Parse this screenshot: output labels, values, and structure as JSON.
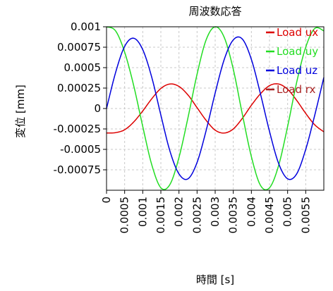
{
  "chart_data": {
    "type": "line",
    "title": "周波数応答",
    "xlabel": "時間 [s]",
    "ylabel": "変位 [mm]",
    "xlim": [
      0,
      0.006
    ],
    "ylim": [
      -0.001,
      0.001
    ],
    "x_ticks": [
      "0",
      "0.0005",
      "0.001",
      "0.0015",
      "0.002",
      "0.0025",
      "0.003",
      "0.0035",
      "0.004",
      "0.0045",
      "0.005",
      "0.0055"
    ],
    "y_ticks": [
      "0.001",
      "0.00075",
      "0.0005",
      "0.00025",
      "0",
      "-0.00025",
      "-0.0005",
      "-0.00075"
    ],
    "grid": true,
    "legend_position": "top-right",
    "series": [
      {
        "name": "Load ux",
        "color": "#dd0000",
        "x": [
          0,
          0.00025,
          0.0005,
          0.00075,
          0.001,
          0.00125,
          0.0015,
          0.00175,
          0.002,
          0.00225,
          0.0025,
          0.00275,
          0.003,
          0.00325,
          0.0035,
          0.00375,
          0.004,
          0.00425,
          0.0045,
          0.00475,
          0.005,
          0.00525,
          0.0055,
          0.00575,
          0.006
        ],
        "y": [
          -0.0003,
          -0.000295,
          -0.00026,
          -0.000165,
          -3e-05,
          0.00012,
          0.000245,
          0.0003,
          0.00027,
          0.000165,
          1e-05,
          -0.000145,
          -0.000265,
          -0.0003,
          -0.00025,
          -0.00012,
          4e-05,
          0.00018,
          0.00028,
          0.0003,
          0.000235,
          0.0001,
          -6e-05,
          -0.0002,
          -0.000285
        ]
      },
      {
        "name": "Load uy",
        "color": "#22dd22",
        "x": [
          0,
          0.00025,
          0.0005,
          0.00075,
          0.001,
          0.00125,
          0.0015,
          0.00175,
          0.002,
          0.00225,
          0.0025,
          0.00275,
          0.003,
          0.00325,
          0.0035,
          0.00375,
          0.004,
          0.00425,
          0.0045,
          0.00475,
          0.005,
          0.00525,
          0.0055,
          0.00575,
          0.006
        ],
        "y": [
          0.001,
          0.00095,
          0.00069,
          0.00028,
          -0.00022,
          -0.00069,
          -0.00097,
          -0.00093,
          -0.0006,
          -0.00011,
          0.00042,
          0.00084,
          0.001,
          0.00087,
          0.00048,
          -7e-05,
          -0.00059,
          -0.00094,
          -0.00097,
          -0.0007,
          -0.00022,
          0.00032,
          0.00075,
          0.00098,
          0.00095
        ]
      },
      {
        "name": "Load uz",
        "color": "#0000dd",
        "x": [
          0,
          0.00025,
          0.0005,
          0.00075,
          0.001,
          0.00125,
          0.0015,
          0.00175,
          0.002,
          0.00225,
          0.0025,
          0.00275,
          0.003,
          0.00325,
          0.0035,
          0.00375,
          0.004,
          0.00425,
          0.0045,
          0.00475,
          0.005,
          0.00525,
          0.0055,
          0.00575,
          0.006
        ],
        "y": [
          0,
          0.00044,
          0.00076,
          0.00086,
          0.00072,
          0.00038,
          -8e-05,
          -0.00052,
          -0.0008,
          -0.00086,
          -0.00066,
          -0.00027,
          0.00019,
          0.0006,
          0.00084,
          0.00085,
          0.0006,
          0.00018,
          -0.00028,
          -0.00067,
          -0.00086,
          -0.0008,
          -0.0005,
          -8e-05,
          0.00038
        ]
      },
      {
        "name": "Load rx",
        "color": "#aa2222",
        "x": [],
        "y": []
      }
    ]
  }
}
